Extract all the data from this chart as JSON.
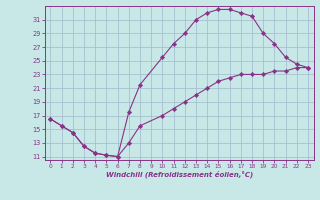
{
  "xlabel": "Windchill (Refroidissement éolien,°C)",
  "xlim": [
    -0.5,
    23.5
  ],
  "ylim": [
    10.5,
    33
  ],
  "xticks": [
    0,
    1,
    2,
    3,
    4,
    5,
    6,
    7,
    8,
    9,
    10,
    11,
    12,
    13,
    14,
    15,
    16,
    17,
    18,
    19,
    20,
    21,
    22,
    23
  ],
  "yticks": [
    11,
    13,
    15,
    17,
    19,
    21,
    23,
    25,
    27,
    29,
    31
  ],
  "bg_color": "#c8e8e8",
  "grid_color": "#a0b8cc",
  "line_color": "#883388",
  "label_color": "#883388",
  "line1_x": [
    0,
    1,
    2,
    3,
    4,
    5,
    6,
    7,
    8,
    10,
    11,
    12,
    13,
    14,
    15,
    16,
    17,
    18,
    19,
    20,
    21,
    22,
    23
  ],
  "line1_y": [
    16.5,
    15.5,
    14.5,
    12.5,
    11.5,
    11.2,
    11.0,
    13.0,
    15.5,
    17.0,
    18.0,
    19.0,
    20.0,
    21.0,
    22.0,
    22.5,
    23.0,
    23.0,
    23.0,
    23.5,
    23.5,
    24.0,
    24.0
  ],
  "line2_x": [
    0,
    1,
    2,
    3,
    4,
    5,
    6,
    7,
    8,
    10,
    11,
    12,
    13,
    14,
    15,
    16,
    17,
    18,
    19,
    20,
    21,
    22,
    23
  ],
  "line2_y": [
    16.5,
    15.5,
    14.5,
    12.5,
    11.5,
    11.2,
    11.0,
    17.5,
    21.5,
    25.5,
    27.5,
    29.0,
    31.0,
    32.0,
    32.5,
    32.5,
    32.0,
    31.5,
    29.0,
    27.5,
    25.5,
    24.5,
    24.0
  ]
}
